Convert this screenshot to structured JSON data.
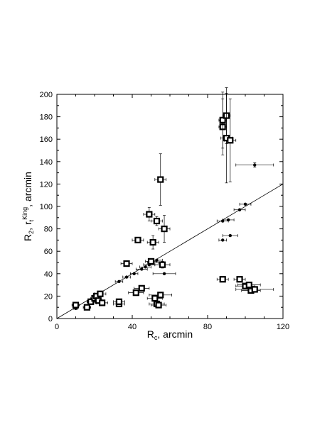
{
  "chart_data": {
    "type": "scatter",
    "title": "",
    "xlabel": {
      "main": "R",
      "sub": "c",
      "rest": ", arcmin"
    },
    "ylabel": {
      "main": "R",
      "sub": "2",
      "mid": ", r",
      "sub2": "t",
      "sup": "King",
      "rest": ", arcmin"
    },
    "xlim": [
      0,
      120
    ],
    "ylim": [
      0,
      200
    ],
    "xticks": [
      0,
      40,
      80,
      120
    ],
    "yticks": [
      0,
      20,
      40,
      60,
      80,
      100,
      120,
      140,
      160,
      180,
      200
    ],
    "xticks_minor_step": 10,
    "yticks_minor_step": 10,
    "grid": false,
    "legend": "none",
    "reference_line": {
      "x": [
        0,
        120
      ],
      "y": [
        0,
        120
      ]
    },
    "series": [
      {
        "marker": "circle",
        "points": [
          {
            "x": 10,
            "y": 9,
            "xerr": 1,
            "yerr": 0
          },
          {
            "x": 17,
            "y": 15,
            "xerr": 1,
            "yerr": 0
          },
          {
            "x": 20,
            "y": 17,
            "xerr": 1,
            "yerr": 0
          },
          {
            "x": 33,
            "y": 33,
            "xerr": 2,
            "yerr": 0
          },
          {
            "x": 37,
            "y": 37,
            "xerr": 2,
            "yerr": 0
          },
          {
            "x": 41,
            "y": 40,
            "xerr": 2,
            "yerr": 0
          },
          {
            "x": 45,
            "y": 44,
            "xerr": 3,
            "yerr": 0
          },
          {
            "x": 47,
            "y": 46,
            "xerr": 3,
            "yerr": 0
          },
          {
            "x": 49,
            "y": 48,
            "xerr": 3,
            "yerr": 0
          },
          {
            "x": 51,
            "y": 50,
            "xerr": 3,
            "yerr": 0
          },
          {
            "x": 53,
            "y": 52,
            "xerr": 3,
            "yerr": 0
          },
          {
            "x": 57,
            "y": 40,
            "xerr": 6,
            "yerr": 0
          },
          {
            "x": 88,
            "y": 70,
            "xerr": 2,
            "yerr": 0
          },
          {
            "x": 88,
            "y": 87,
            "xerr": 3,
            "yerr": 0
          },
          {
            "x": 91,
            "y": 88,
            "xerr": 3,
            "yerr": 0
          },
          {
            "x": 92,
            "y": 74,
            "xerr": 4,
            "yerr": 0
          },
          {
            "x": 97,
            "y": 97,
            "xerr": 3,
            "yerr": 0
          },
          {
            "x": 100,
            "y": 102,
            "xerr": 3,
            "yerr": 0
          },
          {
            "x": 105,
            "y": 137,
            "xerr": 10,
            "yerr": 2
          }
        ]
      },
      {
        "marker": "square",
        "points": [
          {
            "x": 10,
            "y": 12,
            "xerr": 2,
            "yerr": 1
          },
          {
            "x": 16,
            "y": 10,
            "xerr": 2,
            "yerr": 1
          },
          {
            "x": 18,
            "y": 15,
            "xerr": 2,
            "yerr": 1
          },
          {
            "x": 20,
            "y": 18,
            "xerr": 2,
            "yerr": 1
          },
          {
            "x": 21,
            "y": 20,
            "xerr": 2,
            "yerr": 1
          },
          {
            "x": 22,
            "y": 16,
            "xerr": 2,
            "yerr": 1
          },
          {
            "x": 23,
            "y": 22,
            "xerr": 3,
            "yerr": 1
          },
          {
            "x": 24,
            "y": 14,
            "xerr": 3,
            "yerr": 1
          },
          {
            "x": 33,
            "y": 13,
            "xerr": 3,
            "yerr": 1
          },
          {
            "x": 33,
            "y": 15,
            "xerr": 3,
            "yerr": 1
          },
          {
            "x": 37,
            "y": 49,
            "xerr": 3,
            "yerr": 2
          },
          {
            "x": 42,
            "y": 23,
            "xerr": 4,
            "yerr": 1
          },
          {
            "x": 43,
            "y": 70,
            "xerr": 3,
            "yerr": 2
          },
          {
            "x": 45,
            "y": 27,
            "xerr": 4,
            "yerr": 1
          },
          {
            "x": 49,
            "y": 93,
            "xerr": 3,
            "yerr": 6
          },
          {
            "x": 50,
            "y": 51,
            "xerr": 3,
            "yerr": 2
          },
          {
            "x": 51,
            "y": 68,
            "xerr": 3,
            "yerr": 6
          },
          {
            "x": 52,
            "y": 18,
            "xerr": 4,
            "yerr": 2
          },
          {
            "x": 53,
            "y": 13,
            "xerr": 4,
            "yerr": 2
          },
          {
            "x": 53,
            "y": 87,
            "xerr": 3,
            "yerr": 4
          },
          {
            "x": 54,
            "y": 12,
            "xerr": 4,
            "yerr": 2
          },
          {
            "x": 55,
            "y": 21,
            "xerr": 6,
            "yerr": 2
          },
          {
            "x": 55,
            "y": 124,
            "xerr": 3,
            "yerr": 23
          },
          {
            "x": 56,
            "y": 48,
            "xerr": 4,
            "yerr": 3
          },
          {
            "x": 57,
            "y": 80,
            "xerr": 3,
            "yerr": 12
          },
          {
            "x": 88,
            "y": 171,
            "xerr": 2,
            "yerr": 25
          },
          {
            "x": 88,
            "y": 177,
            "xerr": 2,
            "yerr": 25
          },
          {
            "x": 88,
            "y": 35,
            "xerr": 3,
            "yerr": 2
          },
          {
            "x": 90,
            "y": 181,
            "xerr": 2,
            "yerr": 25
          },
          {
            "x": 90,
            "y": 161,
            "xerr": 3,
            "yerr": 40
          },
          {
            "x": 92,
            "y": 159,
            "xerr": 3,
            "yerr": 37
          },
          {
            "x": 97,
            "y": 35,
            "xerr": 3,
            "yerr": 2
          },
          {
            "x": 100,
            "y": 29,
            "xerr": 5,
            "yerr": 2
          },
          {
            "x": 102,
            "y": 30,
            "xerr": 6,
            "yerr": 2
          },
          {
            "x": 103,
            "y": 25,
            "xerr": 5,
            "yerr": 2
          },
          {
            "x": 105,
            "y": 26,
            "xerr": 10,
            "yerr": 2
          }
        ]
      }
    ]
  }
}
